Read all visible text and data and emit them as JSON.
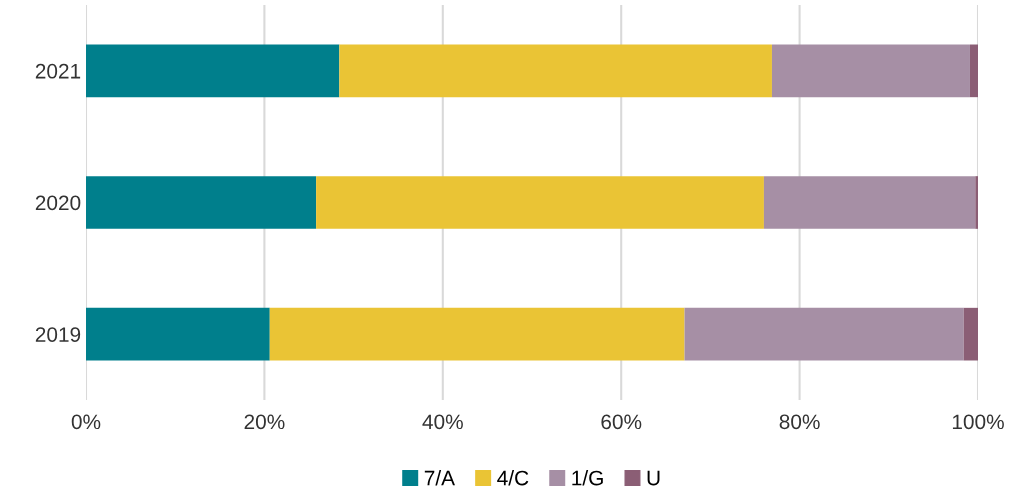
{
  "chart_data": {
    "type": "bar",
    "orientation": "horizontal",
    "stacked": true,
    "categories": [
      "2021",
      "2020",
      "2019"
    ],
    "series": [
      {
        "name": "7/A",
        "color": "#007f8c",
        "values": [
          28.4,
          25.8,
          20.6
        ]
      },
      {
        "name": "4/C",
        "color": "#eac435",
        "values": [
          48.5,
          50.2,
          46.5
        ]
      },
      {
        "name": "1/G",
        "color": "#a68fa5",
        "values": [
          22.2,
          23.7,
          31.3
        ]
      },
      {
        "name": "U",
        "color": "#8b5e75",
        "values": [
          0.9,
          0.3,
          1.6
        ]
      }
    ],
    "xlim": [
      0,
      100
    ],
    "xticks": [
      {
        "value": 0,
        "label": "0%"
      },
      {
        "value": 20,
        "label": "20%"
      },
      {
        "value": 40,
        "label": "40%"
      },
      {
        "value": 60,
        "label": "60%"
      },
      {
        "value": 80,
        "label": "80%"
      },
      {
        "value": 100,
        "label": "100%"
      }
    ],
    "grid": "x",
    "legend": "bottom"
  }
}
